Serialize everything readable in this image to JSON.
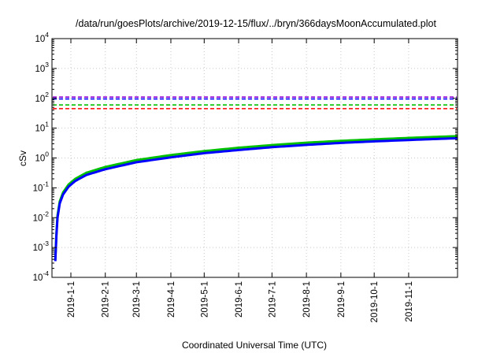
{
  "chart_data": {
    "type": "line",
    "title": "/data/run/goesPlots/archive/2019-12-15/flux/../bryn/366daysMoonAccumulated.plot",
    "xlabel": "Coordinated Universal Time (UTC)",
    "ylabel": "cSv",
    "x_scale": "time",
    "y_scale": "log",
    "xlim": [
      "2018-12-15",
      "2019-12-15"
    ],
    "ylim": [
      0.0001,
      10000
    ],
    "grid": true,
    "legend": "none",
    "x_tick_labels": [
      "2019-1-1",
      "2019-2-1",
      "2019-3-1",
      "2019-4-1",
      "2019-5-1",
      "2019-6-1",
      "2019-7-1",
      "2019-8-1",
      "2019-9-1",
      "2019-10-1",
      "2019-11-1"
    ],
    "y_ticks": [
      {
        "value": 0.0001,
        "base": "10",
        "exp": "-4"
      },
      {
        "value": 0.001,
        "base": "10",
        "exp": "-3"
      },
      {
        "value": 0.01,
        "base": "10",
        "exp": "-2"
      },
      {
        "value": 0.1,
        "base": "10",
        "exp": "-1"
      },
      {
        "value": 1,
        "base": "10",
        "exp": "0"
      },
      {
        "value": 10,
        "base": "10",
        "exp": "1"
      },
      {
        "value": 100,
        "base": "10",
        "exp": "2"
      },
      {
        "value": 1000,
        "base": "10",
        "exp": "3"
      },
      {
        "value": 10000,
        "base": "10",
        "exp": "4"
      }
    ],
    "threshold_lines": [
      {
        "y": 110,
        "color": "#9400d3"
      },
      {
        "y": 95,
        "color": "#0000ff"
      },
      {
        "y": 60,
        "color": "#00c000"
      },
      {
        "y": 45,
        "color": "#ff0000"
      }
    ],
    "series": [
      {
        "color": "#00c000",
        "x": [
          "2018-12-18",
          "2018-12-19",
          "2018-12-20",
          "2018-12-22",
          "2018-12-25",
          "2018-12-30",
          "2019-01-05",
          "2019-01-15",
          "2019-02-01",
          "2019-03-01",
          "2019-04-01",
          "2019-05-01",
          "2019-06-01",
          "2019-07-01",
          "2019-08-01",
          "2019-09-01",
          "2019-10-01",
          "2019-11-01",
          "2019-12-15"
        ],
        "y": [
          0.0004,
          0.003,
          0.012,
          0.035,
          0.07,
          0.13,
          0.2,
          0.32,
          0.5,
          0.85,
          1.25,
          1.7,
          2.2,
          2.7,
          3.25,
          3.75,
          4.2,
          4.7,
          5.4
        ]
      },
      {
        "color": "#0000ff",
        "x": [
          "2018-12-18",
          "2018-12-19",
          "2018-12-20",
          "2018-12-22",
          "2018-12-25",
          "2018-12-30",
          "2019-01-05",
          "2019-01-15",
          "2019-02-01",
          "2019-03-01",
          "2019-04-01",
          "2019-05-01",
          "2019-06-01",
          "2019-07-01",
          "2019-08-01",
          "2019-09-01",
          "2019-10-01",
          "2019-11-01",
          "2019-12-15"
        ],
        "y": [
          0.00035,
          0.0025,
          0.01,
          0.03,
          0.06,
          0.11,
          0.17,
          0.27,
          0.42,
          0.72,
          1.05,
          1.45,
          1.85,
          2.3,
          2.75,
          3.2,
          3.6,
          4.0,
          4.6
        ]
      }
    ]
  }
}
